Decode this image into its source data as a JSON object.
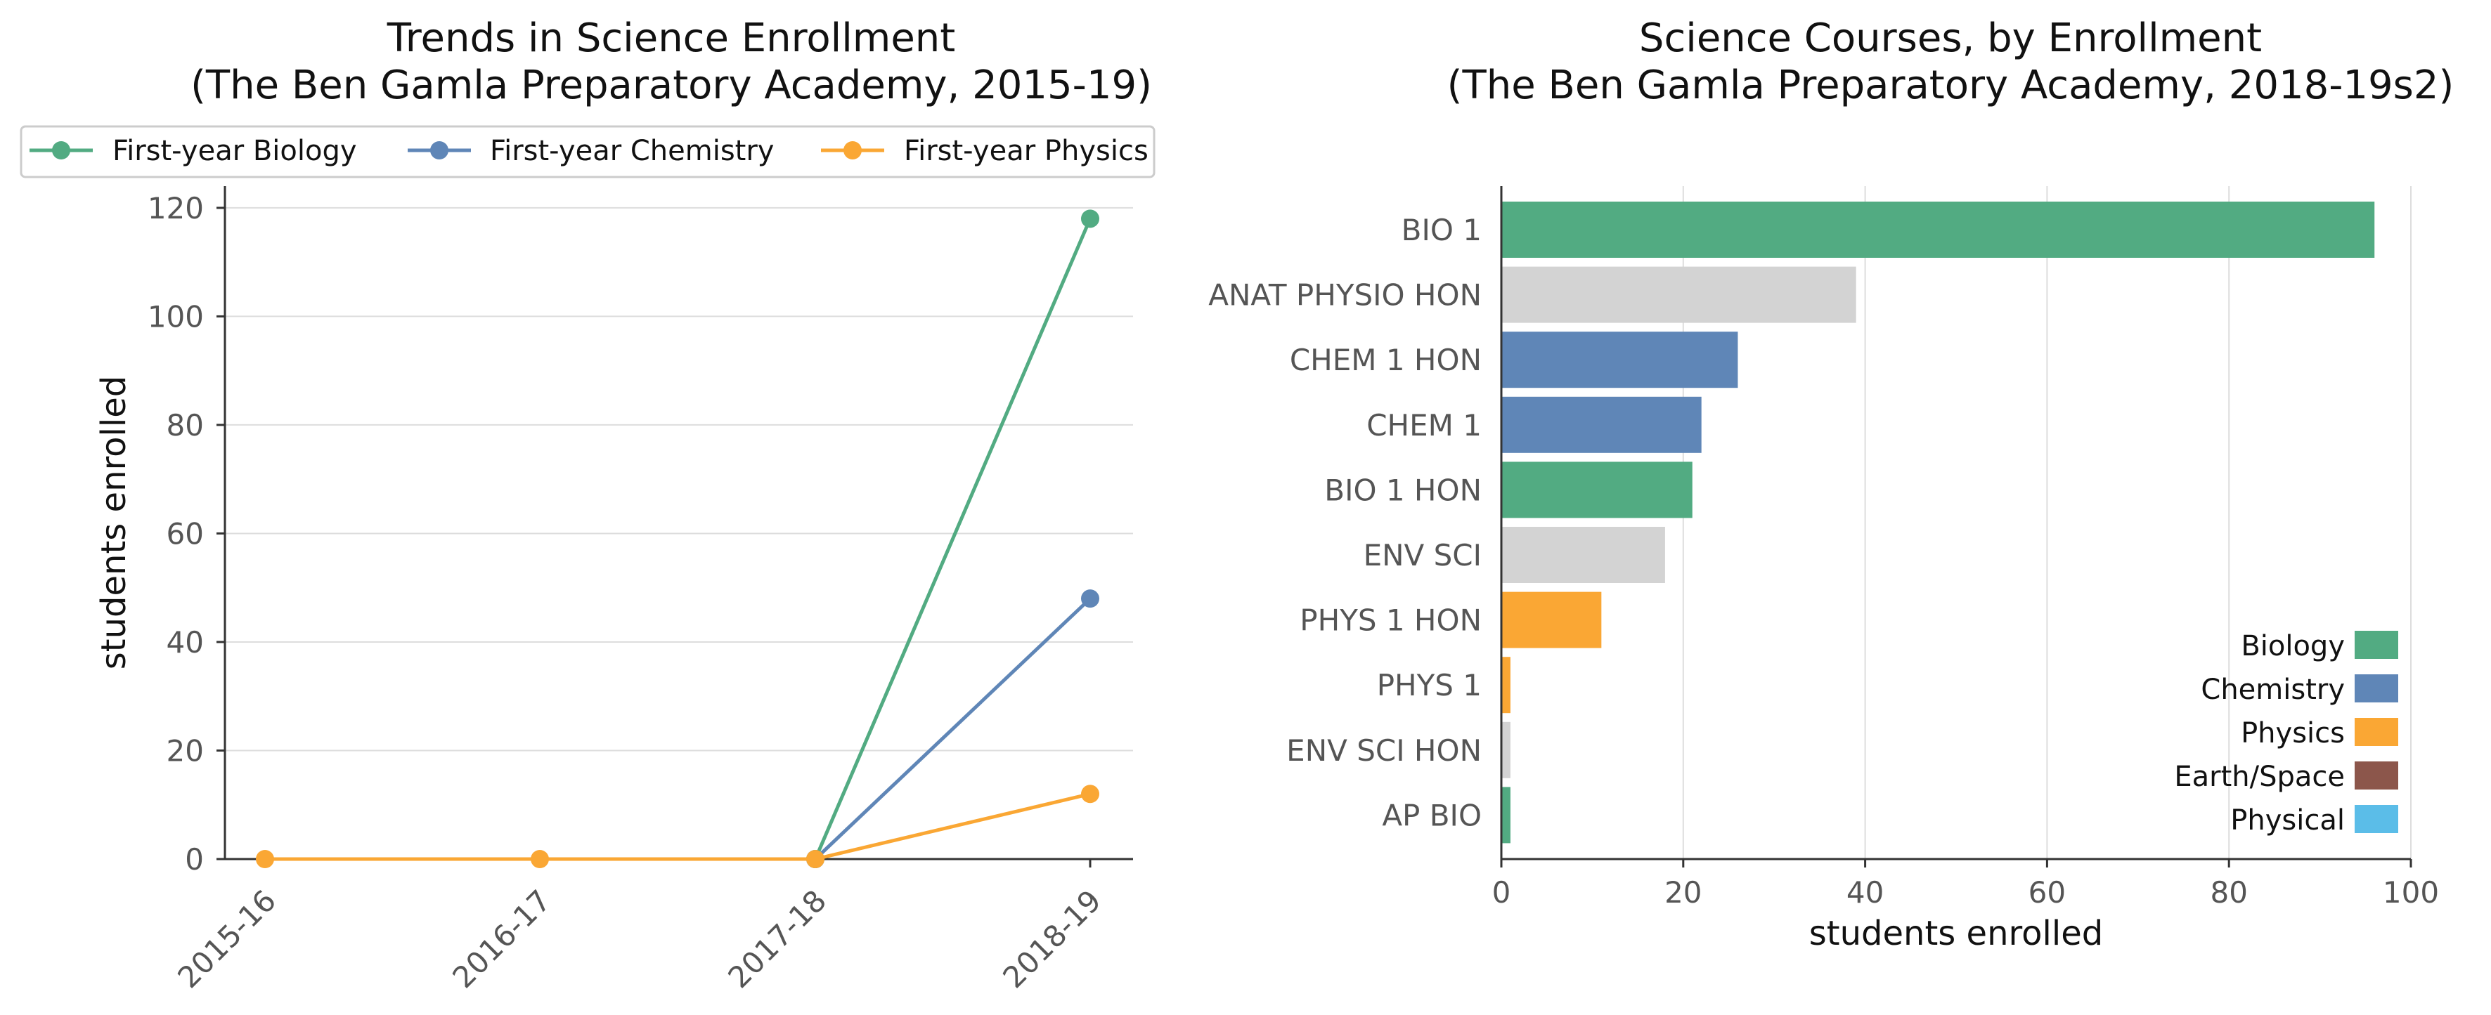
{
  "chart_data": [
    {
      "type": "line",
      "title_lines": [
        "Trends in Science Enrollment",
        "(The Ben Gamla Preparatory Academy, 2015-19)"
      ],
      "xlabel": "",
      "ylabel": "students enrolled",
      "categories": [
        "2015-16",
        "2016-17",
        "2017-18",
        "2018-19"
      ],
      "ylim": [
        0,
        124
      ],
      "yticks": [
        0,
        20,
        40,
        60,
        80,
        100,
        120
      ],
      "grid": "horizontal",
      "legend_position": "top",
      "series": [
        {
          "name": "First-year Biology",
          "color": "#52ab82",
          "values": [
            null,
            null,
            0,
            118
          ]
        },
        {
          "name": "First-year Chemistry",
          "color": "#5f86b7",
          "values": [
            null,
            null,
            0,
            48
          ]
        },
        {
          "name": "First-year Physics",
          "color": "#faa734",
          "values": [
            0,
            0,
            0,
            12
          ]
        }
      ]
    },
    {
      "type": "bar",
      "orientation": "horizontal",
      "title_lines": [
        "Science Courses, by Enrollment",
        "(The Ben Gamla Preparatory Academy, 2018-19s2)"
      ],
      "xlabel": "students enrolled",
      "ylabel": "",
      "xlim": [
        0,
        100
      ],
      "xticks": [
        0,
        20,
        40,
        60,
        80,
        100
      ],
      "grid": "vertical",
      "legend_position": "bottom-right",
      "categories": [
        "BIO 1",
        "ANAT PHYSIO HON",
        "CHEM 1 HON",
        "CHEM 1",
        "BIO 1 HON",
        "ENV SCI",
        "PHYS 1 HON",
        "PHYS 1",
        "ENV SCI HON",
        "AP BIO"
      ],
      "values": [
        96,
        39,
        26,
        22,
        21,
        18,
        11,
        1,
        1,
        1
      ],
      "colors": [
        "#52ab82",
        "#d3d3d3",
        "#5f86b7",
        "#5f86b7",
        "#52ab82",
        "#d3d3d3",
        "#faa734",
        "#faa734",
        "#d3d3d3",
        "#52ab82"
      ],
      "legend": [
        {
          "name": "Biology",
          "color": "#52ab82"
        },
        {
          "name": "Chemistry",
          "color": "#5f86b7"
        },
        {
          "name": "Physics",
          "color": "#faa734"
        },
        {
          "name": "Earth/Space",
          "color": "#8c564b"
        },
        {
          "name": "Physical",
          "color": "#5bbde8"
        }
      ]
    }
  ]
}
